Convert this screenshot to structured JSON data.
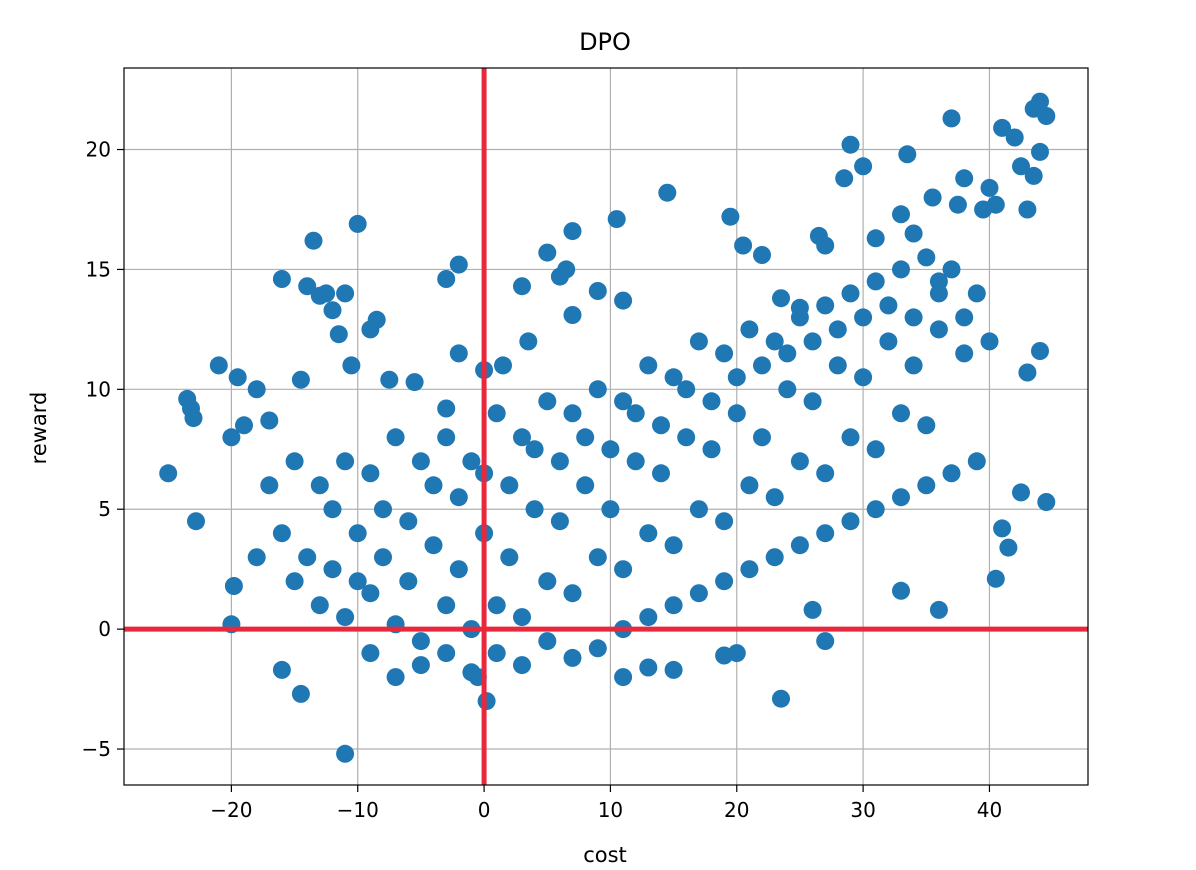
{
  "chart_data": {
    "type": "scatter",
    "title": "DPO",
    "xlabel": "cost",
    "ylabel": "reward",
    "xlim": [
      -28.5,
      47.8
    ],
    "ylim": [
      -6.5,
      23.4
    ],
    "xticks": [
      -20,
      -10,
      0,
      10,
      20,
      30,
      40
    ],
    "yticks": [
      -5,
      0,
      5,
      10,
      15,
      20
    ],
    "xtick_labels": [
      "−20",
      "−10",
      "0",
      "10",
      "20",
      "30",
      "40"
    ],
    "ytick_labels": [
      "−5",
      "0",
      "5",
      "10",
      "15",
      "20"
    ],
    "grid": true,
    "marker_color": "#1f77b4",
    "reference_line_color": "#e8283c",
    "reference_lines": {
      "x": 0,
      "y": 0
    },
    "series": [
      {
        "points": [
          [
            -25,
            6.5
          ],
          [
            -23.5,
            9.6
          ],
          [
            -23.2,
            9.2
          ],
          [
            -23,
            8.8
          ],
          [
            -22.8,
            4.5
          ],
          [
            -21,
            11
          ],
          [
            -20,
            0.2
          ],
          [
            -19.5,
            10.5
          ],
          [
            -19.8,
            1.8
          ],
          [
            -20,
            8
          ],
          [
            -19,
            8.5
          ],
          [
            -18,
            10
          ],
          [
            -17,
            8.7
          ],
          [
            -16,
            14.6
          ],
          [
            -14.5,
            10.4
          ],
          [
            -14,
            14.3
          ],
          [
            -13.5,
            16.2
          ],
          [
            -13,
            13.9
          ],
          [
            -12.5,
            14
          ],
          [
            -12,
            13.3
          ],
          [
            -11.5,
            12.3
          ],
          [
            -11,
            14
          ],
          [
            -10.5,
            11
          ],
          [
            -10,
            16.9
          ],
          [
            -9,
            12.5
          ],
          [
            -8.5,
            12.9
          ],
          [
            -7.5,
            10.4
          ],
          [
            -5.5,
            10.3
          ],
          [
            -3,
            14.6
          ],
          [
            -2,
            15.2
          ],
          [
            -2,
            11.5
          ],
          [
            -3,
            9.2
          ],
          [
            -11,
            -5.2
          ],
          [
            -16,
            -1.7
          ],
          [
            -14.5,
            -2.7
          ],
          [
            0,
            10.8
          ],
          [
            1.5,
            11
          ],
          [
            3,
            14.3
          ],
          [
            3.5,
            12
          ],
          [
            5,
            15.7
          ],
          [
            6,
            14.7
          ],
          [
            6.5,
            15
          ],
          [
            7,
            16.6
          ],
          [
            7,
            13.1
          ],
          [
            9,
            14.1
          ],
          [
            10.5,
            17.1
          ],
          [
            11,
            13.7
          ],
          [
            14.5,
            18.2
          ],
          [
            19.5,
            17.2
          ],
          [
            20.5,
            16
          ],
          [
            22,
            15.6
          ],
          [
            23.5,
            13.8
          ],
          [
            25,
            13.4
          ],
          [
            26.5,
            16.4
          ],
          [
            27,
            16
          ],
          [
            28.5,
            18.8
          ],
          [
            29,
            20.2
          ],
          [
            30,
            19.3
          ],
          [
            31,
            16.3
          ],
          [
            33,
            17.3
          ],
          [
            33.5,
            19.8
          ],
          [
            34,
            16.5
          ],
          [
            35.5,
            18
          ],
          [
            36,
            14.5
          ],
          [
            37,
            21.3
          ],
          [
            37.5,
            17.7
          ],
          [
            38,
            18.8
          ],
          [
            39.5,
            17.5
          ],
          [
            40,
            18.4
          ],
          [
            40.5,
            17.7
          ],
          [
            41,
            20.9
          ],
          [
            42,
            20.5
          ],
          [
            42.5,
            19.3
          ],
          [
            43,
            17.5
          ],
          [
            43.5,
            21.7
          ],
          [
            44,
            22
          ],
          [
            44,
            19.9
          ],
          [
            44.5,
            21.4
          ],
          [
            43.5,
            18.9
          ],
          [
            44,
            11.6
          ],
          [
            44.5,
            5.3
          ],
          [
            43,
            10.7
          ],
          [
            42.5,
            5.7
          ],
          [
            41,
            4.2
          ],
          [
            40.5,
            2.1
          ],
          [
            41.5,
            3.4
          ],
          [
            36,
            0.8
          ],
          [
            33,
            1.6
          ],
          [
            27,
            -0.5
          ],
          [
            26,
            0.8
          ],
          [
            23.5,
            -2.9
          ],
          [
            20,
            -1
          ],
          [
            19,
            -1.1
          ],
          [
            15,
            -1.7
          ],
          [
            13,
            -1.6
          ],
          [
            11,
            -2
          ],
          [
            -0.5,
            -2
          ],
          [
            0.2,
            -3
          ],
          [
            -12,
            5
          ],
          [
            -10,
            4
          ],
          [
            -8,
            3
          ],
          [
            -6,
            2
          ],
          [
            -4,
            3.5
          ],
          [
            -2,
            2.5
          ],
          [
            0,
            4
          ],
          [
            2,
            3
          ],
          [
            4,
            5
          ],
          [
            6,
            4.5
          ],
          [
            8,
            6
          ],
          [
            10,
            5
          ],
          [
            12,
            7
          ],
          [
            14,
            6.5
          ],
          [
            16,
            8
          ],
          [
            18,
            7.5
          ],
          [
            20,
            9
          ],
          [
            22,
            8
          ],
          [
            24,
            10
          ],
          [
            26,
            9.5
          ],
          [
            28,
            11
          ],
          [
            30,
            10.5
          ],
          [
            32,
            12
          ],
          [
            34,
            11
          ],
          [
            36,
            12.5
          ],
          [
            38,
            11.5
          ],
          [
            -15,
            2
          ],
          [
            -13,
            1
          ],
          [
            -11,
            0.5
          ],
          [
            -9,
            1.5
          ],
          [
            -7,
            0.2
          ],
          [
            -5,
            -0.5
          ],
          [
            -3,
            1
          ],
          [
            -1,
            0
          ],
          [
            1,
            1
          ],
          [
            3,
            0.5
          ],
          [
            5,
            2
          ],
          [
            7,
            1.5
          ],
          [
            9,
            3
          ],
          [
            11,
            2.5
          ],
          [
            13,
            4
          ],
          [
            15,
            3.5
          ],
          [
            17,
            5
          ],
          [
            19,
            4.5
          ],
          [
            21,
            6
          ],
          [
            23,
            5.5
          ],
          [
            25,
            7
          ],
          [
            27,
            6.5
          ],
          [
            29,
            8
          ],
          [
            31,
            7.5
          ],
          [
            33,
            9
          ],
          [
            35,
            8.5
          ],
          [
            -17,
            6
          ],
          [
            -15,
            7
          ],
          [
            -13,
            6
          ],
          [
            -11,
            7
          ],
          [
            -9,
            6.5
          ],
          [
            -7,
            8
          ],
          [
            -5,
            7
          ],
          [
            -3,
            8
          ],
          [
            -1,
            7
          ],
          [
            1,
            9
          ],
          [
            3,
            8
          ],
          [
            5,
            9.5
          ],
          [
            7,
            9
          ],
          [
            9,
            10
          ],
          [
            11,
            9.5
          ],
          [
            13,
            11
          ],
          [
            15,
            10.5
          ],
          [
            17,
            12
          ],
          [
            19,
            11.5
          ],
          [
            21,
            12.5
          ],
          [
            23,
            12
          ],
          [
            25,
            13
          ],
          [
            27,
            13.5
          ],
          [
            29,
            14
          ],
          [
            31,
            14.5
          ],
          [
            33,
            15
          ],
          [
            35,
            15.5
          ],
          [
            37,
            15
          ],
          [
            39,
            14
          ],
          [
            -18,
            3
          ],
          [
            -16,
            4
          ],
          [
            -14,
            3
          ],
          [
            -12,
            2.5
          ],
          [
            -10,
            2
          ],
          [
            -8,
            5
          ],
          [
            -6,
            4.5
          ],
          [
            -4,
            6
          ],
          [
            -2,
            5.5
          ],
          [
            0,
            6.5
          ],
          [
            2,
            6
          ],
          [
            4,
            7.5
          ],
          [
            6,
            7
          ],
          [
            8,
            8
          ],
          [
            10,
            7.5
          ],
          [
            12,
            9
          ],
          [
            14,
            8.5
          ],
          [
            16,
            10
          ],
          [
            18,
            9.5
          ],
          [
            20,
            10.5
          ],
          [
            22,
            11
          ],
          [
            24,
            11.5
          ],
          [
            26,
            12
          ],
          [
            28,
            12.5
          ],
          [
            30,
            13
          ],
          [
            32,
            13.5
          ],
          [
            34,
            13
          ],
          [
            36,
            14
          ],
          [
            38,
            13
          ],
          [
            40,
            12
          ],
          [
            -9,
            -1
          ],
          [
            -7,
            -2
          ],
          [
            -5,
            -1.5
          ],
          [
            -3,
            -1
          ],
          [
            -1,
            -1.8
          ],
          [
            1,
            -1
          ],
          [
            3,
            -1.5
          ],
          [
            5,
            -0.5
          ],
          [
            7,
            -1.2
          ],
          [
            9,
            -0.8
          ],
          [
            11,
            0
          ],
          [
            13,
            0.5
          ],
          [
            15,
            1
          ],
          [
            17,
            1.5
          ],
          [
            19,
            2
          ],
          [
            21,
            2.5
          ],
          [
            23,
            3
          ],
          [
            25,
            3.5
          ],
          [
            27,
            4
          ],
          [
            29,
            4.5
          ],
          [
            31,
            5
          ],
          [
            33,
            5.5
          ],
          [
            35,
            6
          ],
          [
            37,
            6.5
          ],
          [
            39,
            7
          ]
        ]
      }
    ]
  }
}
